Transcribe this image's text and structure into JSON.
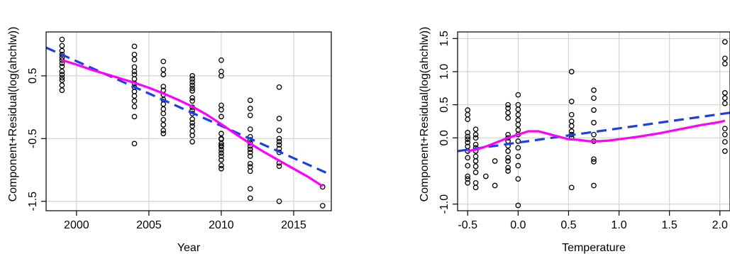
{
  "chart_data": [
    {
      "type": "scatter",
      "xlabel": "Year",
      "ylabel": "Component+Residual(log(ahchlw))",
      "xlim": [
        1997.9,
        2017.6
      ],
      "ylim": [
        -1.65,
        1.2
      ],
      "xticks": [
        2000,
        2005,
        2010,
        2015
      ],
      "yticks": [
        -1.5,
        -0.5,
        0.5
      ],
      "xtick_labels": [
        "2000",
        "2005",
        "2010",
        "2015"
      ],
      "ytick_labels": [
        "-1.5",
        "-0.5",
        "0.5"
      ],
      "grid": true,
      "colors": {
        "points": "#000000",
        "fit": "#1f3fe0",
        "smooth": "#ff00ff"
      },
      "series": [
        {
          "style": "points",
          "x": [
            1999,
            1999,
            1999,
            1999,
            1999,
            1999,
            1999,
            1999,
            1999,
            1999,
            1999,
            1999,
            1999,
            1999,
            2004,
            2004,
            2004,
            2004,
            2004,
            2004,
            2004,
            2004,
            2004,
            2004,
            2004,
            2004,
            2004,
            2004,
            2004,
            2006,
            2006,
            2006,
            2006,
            2006,
            2006,
            2006,
            2006,
            2006,
            2006,
            2006,
            2006,
            2006,
            2006,
            2008,
            2008,
            2008,
            2008,
            2008,
            2008,
            2008,
            2008,
            2008,
            2008,
            2008,
            2008,
            2008,
            2008,
            2008,
            2008,
            2008,
            2010,
            2010,
            2010,
            2010,
            2010,
            2010,
            2010,
            2010,
            2010,
            2010,
            2010,
            2010,
            2010,
            2010,
            2010,
            2010,
            2010,
            2010,
            2012,
            2012,
            2012,
            2012,
            2012,
            2012,
            2012,
            2012,
            2012,
            2012,
            2012,
            2012,
            2012,
            2012,
            2012,
            2012,
            2014,
            2014,
            2014,
            2014,
            2014,
            2014,
            2014,
            2014,
            2014,
            2014,
            2014,
            2017,
            2017
          ],
          "y": [
            1.08,
            0.98,
            0.9,
            0.84,
            0.79,
            0.75,
            0.7,
            0.65,
            0.57,
            0.52,
            0.47,
            0.43,
            0.35,
            0.27,
            0.97,
            0.84,
            0.76,
            0.64,
            0.57,
            0.52,
            0.45,
            0.38,
            0.32,
            0.25,
            0.18,
            0.1,
            0.01,
            -0.15,
            -0.58,
            0.73,
            0.6,
            0.52,
            0.33,
            0.27,
            0.2,
            0.12,
            0.05,
            -0.03,
            -0.1,
            -0.2,
            -0.28,
            -0.37,
            -0.42,
            0.5,
            0.45,
            0.4,
            0.35,
            0.3,
            0.26,
            0.15,
            0.1,
            0.0,
            -0.05,
            -0.1,
            -0.19,
            -0.25,
            -0.3,
            -0.38,
            -0.45,
            -0.55,
            0.75,
            0.57,
            0.5,
            0.03,
            -0.04,
            -0.15,
            -0.42,
            -0.5,
            -0.58,
            -0.63,
            -0.68,
            -0.73,
            -0.78,
            -0.84,
            -0.93,
            -0.98,
            -0.51,
            -0.61,
            0.11,
            -0.02,
            -0.13,
            -0.35,
            -0.47,
            -0.52,
            -0.57,
            -0.62,
            -0.67,
            -0.72,
            -0.78,
            -0.9,
            -0.95,
            -1.02,
            -1.3,
            -1.45,
            0.32,
            -0.18,
            -0.37,
            -0.5,
            -0.55,
            -0.6,
            -0.66,
            -0.72,
            -0.89,
            -0.94,
            -1.5,
            -1.27,
            -1.57
          ],
          "marker": "open-circle"
        },
        {
          "style": "dashed-line",
          "x": [
            1997.9,
            2017.6
          ],
          "y": [
            0.95,
            -1.08
          ]
        },
        {
          "style": "smooth-line",
          "x": [
            1999,
            2000,
            2001,
            2002,
            2003,
            2004,
            2005,
            2006,
            2007,
            2008,
            2009,
            2010,
            2011,
            2012,
            2013,
            2014,
            2015,
            2016,
            2017
          ],
          "y": [
            0.75,
            0.68,
            0.6,
            0.53,
            0.46,
            0.39,
            0.31,
            0.22,
            0.12,
            0.01,
            -0.12,
            -0.27,
            -0.43,
            -0.58,
            -0.72,
            -0.85,
            -0.98,
            -1.11,
            -1.26
          ]
        }
      ]
    },
    {
      "type": "scatter",
      "xlabel": "Temperature",
      "ylabel": "Component+Residual(log(ahchlw))",
      "xlim": [
        -0.6,
        2.1
      ],
      "ylim": [
        -1.1,
        1.6
      ],
      "xticks": [
        -0.5,
        0.0,
        0.5,
        1.0,
        1.5,
        2.0
      ],
      "yticks": [
        -1.0,
        0.0,
        0.5,
        1.0,
        1.5
      ],
      "xtick_labels": [
        "-0.5",
        "0.0",
        "0.5",
        "1.0",
        "1.5",
        "2.0"
      ],
      "ytick_labels": [
        "-1.0",
        "0.0",
        "0.5",
        "1.0",
        "1.5"
      ],
      "grid": true,
      "colors": {
        "points": "#000000",
        "fit": "#1f3fe0",
        "smooth": "#ff00ff"
      },
      "series": [
        {
          "style": "points",
          "x": [
            -0.5,
            -0.5,
            -0.5,
            -0.5,
            -0.5,
            -0.5,
            -0.5,
            -0.5,
            -0.5,
            -0.5,
            -0.5,
            -0.5,
            -0.5,
            -0.5,
            -0.42,
            -0.42,
            -0.42,
            -0.42,
            -0.42,
            -0.42,
            -0.42,
            -0.42,
            -0.42,
            -0.42,
            -0.42,
            -0.42,
            -0.32,
            -0.23,
            -0.23,
            -0.1,
            -0.1,
            -0.1,
            -0.1,
            -0.1,
            -0.1,
            -0.1,
            -0.1,
            -0.1,
            -0.1,
            -0.1,
            -0.1,
            -0.1,
            0.0,
            0.0,
            0.0,
            0.0,
            0.0,
            0.0,
            0.0,
            0.0,
            0.0,
            0.0,
            0.0,
            0.0,
            0.0,
            0.0,
            0.53,
            0.53,
            0.53,
            0.53,
            0.53,
            0.53,
            0.53,
            0.53,
            0.53,
            0.75,
            0.75,
            0.75,
            0.75,
            0.75,
            0.75,
            0.75,
            0.75,
            0.75,
            2.05,
            2.05,
            2.05,
            2.05,
            2.05,
            2.05,
            2.05,
            2.05,
            2.05,
            2.05
          ],
          "y": [
            0.42,
            0.35,
            0.28,
            0.08,
            0.02,
            -0.02,
            -0.07,
            -0.13,
            -0.2,
            -0.3,
            -0.42,
            -0.58,
            -0.62,
            -0.68,
            0.13,
            0.05,
            0.0,
            -0.1,
            -0.15,
            -0.2,
            -0.28,
            -0.35,
            -0.43,
            -0.52,
            -0.68,
            -0.75,
            -0.58,
            -0.35,
            -0.72,
            0.5,
            0.45,
            0.38,
            0.3,
            0.05,
            0.0,
            -0.05,
            -0.12,
            -0.2,
            -0.3,
            -0.35,
            -0.45,
            -0.5,
            0.65,
            0.5,
            0.43,
            0.35,
            0.27,
            0.2,
            0.12,
            0.05,
            -0.05,
            -0.15,
            -0.28,
            -0.42,
            -0.62,
            -1.02,
            1.0,
            0.55,
            0.35,
            0.25,
            0.18,
            0.1,
            0.05,
            0.0,
            -0.75,
            0.72,
            0.6,
            0.42,
            0.23,
            0.05,
            -0.05,
            -0.32,
            -0.36,
            -0.72,
            1.45,
            1.2,
            1.12,
            0.68,
            0.6,
            0.52,
            0.14,
            0.05,
            -0.06,
            -0.2
          ],
          "marker": "open-circle"
        },
        {
          "style": "dashed-line",
          "x": [
            -0.6,
            2.1
          ],
          "y": [
            -0.2,
            0.38
          ]
        },
        {
          "style": "smooth-line",
          "x": [
            -0.5,
            -0.4,
            -0.3,
            -0.2,
            -0.1,
            0.0,
            0.1,
            0.2,
            0.3,
            0.4,
            0.5,
            0.6,
            0.7,
            0.8,
            0.9,
            1.0,
            1.2,
            1.4,
            1.6,
            1.8,
            2.0,
            2.05
          ],
          "y": [
            -0.2,
            -0.17,
            -0.12,
            -0.06,
            0.0,
            0.05,
            0.1,
            0.1,
            0.06,
            0.02,
            -0.02,
            -0.03,
            -0.05,
            -0.05,
            -0.04,
            -0.02,
            0.02,
            0.07,
            0.13,
            0.19,
            0.24,
            0.26
          ]
        }
      ]
    }
  ]
}
